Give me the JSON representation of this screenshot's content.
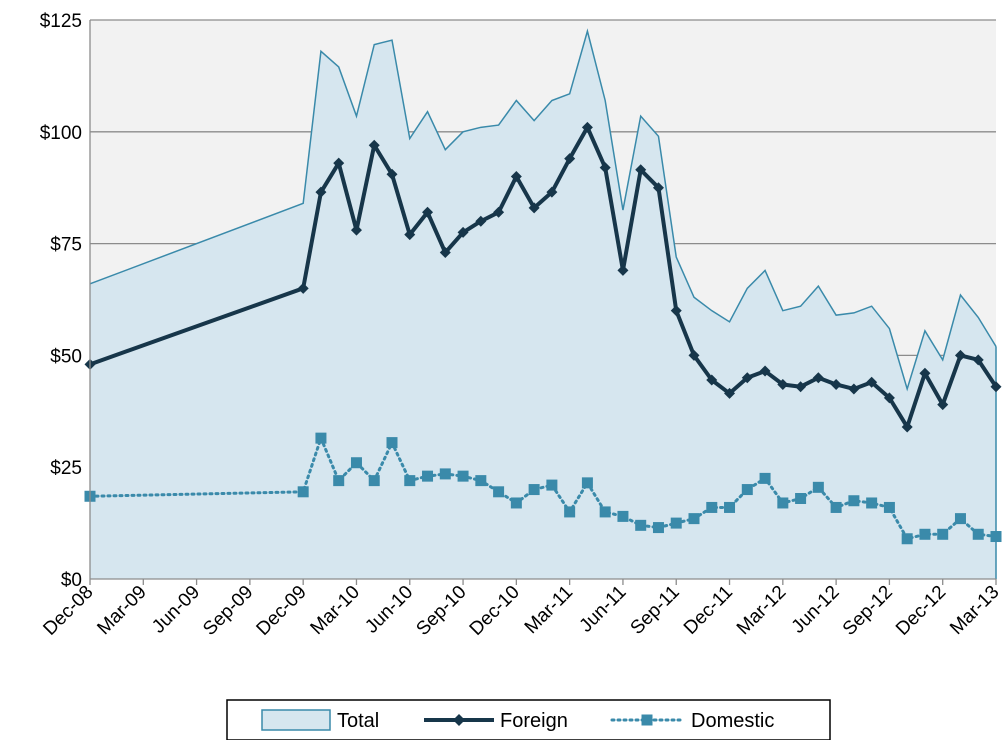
{
  "chart_data": {
    "type": "area",
    "title": "",
    "xlabel": "",
    "ylabel": "",
    "ylim": [
      0,
      125
    ],
    "y_ticks": [
      "$0",
      "$25",
      "$50",
      "$75",
      "$100",
      "$125"
    ],
    "x_ticks": [
      "Dec-08",
      "Mar-09",
      "Jun-09",
      "Sep-09",
      "Dec-09",
      "Mar-10",
      "Jun-10",
      "Sep-10",
      "Dec-10",
      "Mar-11",
      "Jun-11",
      "Sep-11",
      "Dec-11",
      "Mar-12",
      "Jun-12",
      "Sep-12",
      "Dec-12",
      "Mar-13"
    ],
    "grid": "horizontal",
    "legend_position": "bottom",
    "x": [
      "Dec-08",
      "Dec-09",
      "Jan-10",
      "Feb-10",
      "Mar-10",
      "Apr-10",
      "May-10",
      "Jun-10",
      "Jul-10",
      "Aug-10",
      "Sep-10",
      "Oct-10",
      "Nov-10",
      "Dec-10",
      "Jan-11",
      "Feb-11",
      "Mar-11",
      "Apr-11",
      "May-11",
      "Jun-11",
      "Jul-11",
      "Aug-11",
      "Sep-11",
      "Oct-11",
      "Nov-11",
      "Dec-11",
      "Jan-12",
      "Feb-12",
      "Mar-12",
      "Apr-12",
      "May-12",
      "Jun-12",
      "Jul-12",
      "Aug-12",
      "Sep-12",
      "Oct-12",
      "Nov-12",
      "Dec-12",
      "Jan-13",
      "Feb-13",
      "Mar-13"
    ],
    "series": [
      {
        "name": "Total",
        "style": "area",
        "color": "#3a8aaa",
        "fill": "#d6e6ef",
        "values": [
          66,
          84,
          118,
          114.5,
          103.5,
          119.5,
          120.5,
          98.5,
          104.5,
          96,
          100,
          101,
          101.5,
          107,
          102.5,
          107,
          108.5,
          122.5,
          107,
          82.5,
          103.5,
          99,
          72,
          63,
          60,
          57.5,
          65,
          69,
          60,
          61,
          65.5,
          59,
          59.5,
          61,
          56,
          42.5,
          55.5,
          49,
          63.5,
          58.5,
          52
        ]
      },
      {
        "name": "Foreign",
        "style": "line-diamond",
        "color": "#17364a",
        "values": [
          48,
          65,
          86.5,
          93,
          78,
          97,
          90.5,
          77,
          82,
          73,
          77.5,
          80,
          82,
          90,
          83,
          86.5,
          94,
          101,
          92,
          69,
          91.5,
          87.5,
          60,
          50,
          44.5,
          41.5,
          45,
          46.5,
          43.5,
          43,
          45,
          43.5,
          42.5,
          44,
          40.5,
          34,
          46,
          39,
          50,
          49,
          43
        ]
      },
      {
        "name": "Domestic",
        "style": "dotted-square",
        "color": "#3a8aaa",
        "values": [
          18.5,
          19.5,
          31.5,
          22,
          26,
          22,
          30.5,
          22,
          23,
          23.5,
          23,
          22,
          19.5,
          17,
          20,
          21,
          15,
          21.5,
          15,
          14,
          12,
          11.5,
          12.5,
          13.5,
          16,
          16,
          20,
          22.5,
          17,
          18,
          20.5,
          16,
          17.5,
          17,
          16,
          9,
          10,
          10,
          13.5,
          10,
          9.5
        ]
      }
    ]
  }
}
